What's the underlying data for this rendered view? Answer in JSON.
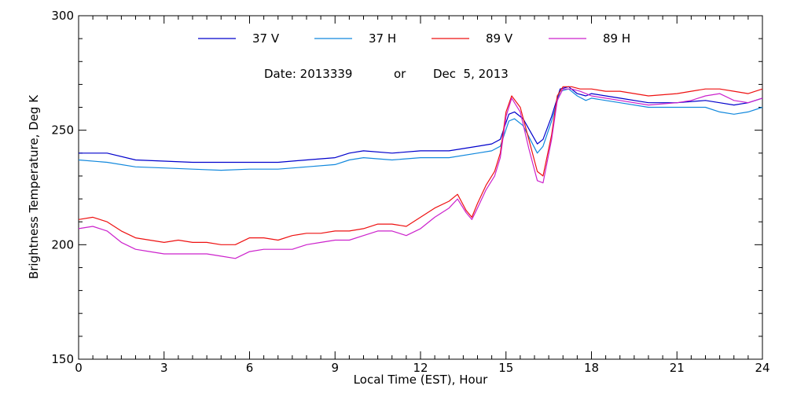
{
  "chart_data": {
    "type": "line",
    "title": "",
    "annotation": {
      "date_prefix": "Date: 2013339",
      "or_word": "or",
      "date_text": "Dec  5, 2013"
    },
    "xlabel": "Local Time (EST), Hour",
    "ylabel": "Brightness Temperature, Deg K",
    "xlim": [
      0,
      24
    ],
    "ylim": [
      150,
      300
    ],
    "x_ticks": [
      0,
      3,
      6,
      9,
      12,
      15,
      18,
      21,
      24
    ],
    "x_tick_labels": [
      "0",
      "3",
      "6",
      "9",
      "12",
      "15",
      "18",
      "21",
      "24"
    ],
    "y_ticks": [
      150,
      200,
      250,
      300
    ],
    "y_tick_labels": [
      "150",
      "200",
      "250",
      "300"
    ],
    "grid": false,
    "legend_position": "top",
    "series": [
      {
        "name": "37 V",
        "color": "#0000cc",
        "points": [
          [
            0,
            240
          ],
          [
            1,
            240
          ],
          [
            2,
            237
          ],
          [
            3,
            236.5
          ],
          [
            4,
            236
          ],
          [
            5,
            236
          ],
          [
            6,
            236
          ],
          [
            7,
            236
          ],
          [
            8,
            237
          ],
          [
            9,
            238
          ],
          [
            9.5,
            240
          ],
          [
            10,
            241
          ],
          [
            11,
            240
          ],
          [
            12,
            241
          ],
          [
            13,
            241
          ],
          [
            14,
            243
          ],
          [
            14.5,
            244
          ],
          [
            14.8,
            246
          ],
          [
            15.1,
            257
          ],
          [
            15.3,
            258
          ],
          [
            15.6,
            255
          ],
          [
            16.1,
            244
          ],
          [
            16.3,
            246
          ],
          [
            16.6,
            256
          ],
          [
            16.9,
            268
          ],
          [
            17.2,
            269
          ],
          [
            17.5,
            266
          ],
          [
            17.8,
            265
          ],
          [
            18,
            266
          ],
          [
            18.5,
            265
          ],
          [
            19,
            264
          ],
          [
            20,
            262
          ],
          [
            21,
            262
          ],
          [
            22,
            263
          ],
          [
            22.5,
            262
          ],
          [
            23,
            261
          ],
          [
            23.5,
            262
          ],
          [
            24,
            264
          ]
        ]
      },
      {
        "name": "37 H",
        "color": "#1188dd",
        "points": [
          [
            0,
            237
          ],
          [
            1,
            236
          ],
          [
            2,
            234
          ],
          [
            3,
            233.5
          ],
          [
            4,
            233
          ],
          [
            5,
            232.5
          ],
          [
            6,
            233
          ],
          [
            7,
            233
          ],
          [
            8,
            234
          ],
          [
            9,
            235
          ],
          [
            9.5,
            237
          ],
          [
            10,
            238
          ],
          [
            11,
            237
          ],
          [
            12,
            238
          ],
          [
            13,
            238
          ],
          [
            14,
            240
          ],
          [
            14.5,
            241
          ],
          [
            14.8,
            243
          ],
          [
            15.1,
            254
          ],
          [
            15.3,
            255
          ],
          [
            15.6,
            252
          ],
          [
            16.1,
            240
          ],
          [
            16.3,
            243
          ],
          [
            16.6,
            254
          ],
          [
            16.9,
            267
          ],
          [
            17.2,
            268
          ],
          [
            17.5,
            265
          ],
          [
            17.8,
            263
          ],
          [
            18,
            264
          ],
          [
            18.5,
            263
          ],
          [
            19,
            262
          ],
          [
            20,
            260
          ],
          [
            21,
            260
          ],
          [
            22,
            260
          ],
          [
            22.5,
            258
          ],
          [
            23,
            257
          ],
          [
            23.5,
            258
          ],
          [
            24,
            260
          ]
        ]
      },
      {
        "name": "89 V",
        "color": "#ee1111",
        "points": [
          [
            0,
            211
          ],
          [
            0.5,
            212
          ],
          [
            1,
            210
          ],
          [
            1.5,
            206
          ],
          [
            2,
            203
          ],
          [
            2.5,
            202
          ],
          [
            3,
            201
          ],
          [
            3.5,
            202
          ],
          [
            4,
            201
          ],
          [
            4.5,
            201
          ],
          [
            5,
            200
          ],
          [
            5.5,
            200
          ],
          [
            6,
            203
          ],
          [
            6.5,
            203
          ],
          [
            7,
            202
          ],
          [
            7.5,
            204
          ],
          [
            8,
            205
          ],
          [
            8.5,
            205
          ],
          [
            9,
            206
          ],
          [
            9.5,
            206
          ],
          [
            10,
            207
          ],
          [
            10.5,
            209
          ],
          [
            11,
            209
          ],
          [
            11.5,
            208
          ],
          [
            12,
            212
          ],
          [
            12.5,
            216
          ],
          [
            13,
            219
          ],
          [
            13.3,
            222
          ],
          [
            13.6,
            215
          ],
          [
            13.8,
            212
          ],
          [
            14,
            218
          ],
          [
            14.3,
            226
          ],
          [
            14.6,
            232
          ],
          [
            14.8,
            240
          ],
          [
            15,
            258
          ],
          [
            15.2,
            265
          ],
          [
            15.5,
            260
          ],
          [
            15.8,
            246
          ],
          [
            16.1,
            232
          ],
          [
            16.3,
            230
          ],
          [
            16.6,
            248
          ],
          [
            16.8,
            265
          ],
          [
            17,
            269
          ],
          [
            17.3,
            269
          ],
          [
            17.6,
            268
          ],
          [
            18,
            268
          ],
          [
            18.5,
            267
          ],
          [
            19,
            267
          ],
          [
            20,
            265
          ],
          [
            21,
            266
          ],
          [
            21.5,
            267
          ],
          [
            22,
            268
          ],
          [
            22.5,
            268
          ],
          [
            23,
            267
          ],
          [
            23.5,
            266
          ],
          [
            24,
            268
          ]
        ]
      },
      {
        "name": "89 H",
        "color": "#cc22cc",
        "points": [
          [
            0,
            207
          ],
          [
            0.5,
            208
          ],
          [
            1,
            206
          ],
          [
            1.5,
            201
          ],
          [
            2,
            198
          ],
          [
            2.5,
            197
          ],
          [
            3,
            196
          ],
          [
            3.5,
            196
          ],
          [
            4,
            196
          ],
          [
            4.5,
            196
          ],
          [
            5,
            195
          ],
          [
            5.5,
            194
          ],
          [
            6,
            197
          ],
          [
            6.5,
            198
          ],
          [
            7,
            198
          ],
          [
            7.5,
            198
          ],
          [
            8,
            200
          ],
          [
            8.5,
            201
          ],
          [
            9,
            202
          ],
          [
            9.5,
            202
          ],
          [
            10,
            204
          ],
          [
            10.5,
            206
          ],
          [
            11,
            206
          ],
          [
            11.5,
            204
          ],
          [
            12,
            207
          ],
          [
            12.5,
            212
          ],
          [
            13,
            216
          ],
          [
            13.3,
            220
          ],
          [
            13.6,
            214
          ],
          [
            13.8,
            211
          ],
          [
            14,
            216
          ],
          [
            14.3,
            224
          ],
          [
            14.6,
            230
          ],
          [
            14.8,
            238
          ],
          [
            15,
            256
          ],
          [
            15.2,
            264
          ],
          [
            15.5,
            258
          ],
          [
            15.8,
            242
          ],
          [
            16.1,
            228
          ],
          [
            16.3,
            227
          ],
          [
            16.6,
            246
          ],
          [
            16.8,
            263
          ],
          [
            17,
            268
          ],
          [
            17.3,
            268
          ],
          [
            17.6,
            267
          ],
          [
            18,
            265
          ],
          [
            18.5,
            264
          ],
          [
            19,
            263
          ],
          [
            20,
            261
          ],
          [
            21,
            262
          ],
          [
            21.5,
            263
          ],
          [
            22,
            265
          ],
          [
            22.5,
            266
          ],
          [
            23,
            263
          ],
          [
            23.5,
            262
          ],
          [
            24,
            264
          ]
        ]
      }
    ]
  }
}
